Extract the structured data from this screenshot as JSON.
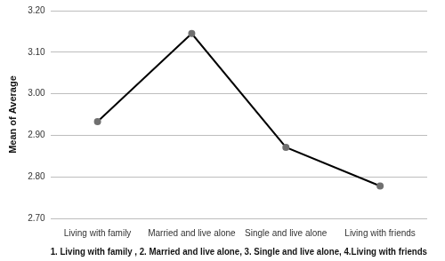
{
  "chart_data": {
    "type": "line",
    "categories": [
      "Living with family",
      "Married and live alone",
      "Single and live alone",
      "Living with friends"
    ],
    "values": [
      2.933,
      3.145,
      2.871,
      2.778
    ],
    "color": "#000000",
    "marker": "circle",
    "ylim": [
      2.7,
      3.2
    ],
    "yticks": [
      {
        "value": 2.7,
        "label": "2.70"
      },
      {
        "value": 2.8,
        "label": "2.80"
      },
      {
        "value": 2.9,
        "label": "2.90"
      },
      {
        "value": 3.0,
        "label": "3.00"
      },
      {
        "value": 3.1,
        "label": "3.10"
      },
      {
        "value": 3.2,
        "label": "3.20"
      }
    ],
    "y_label": "Mean of Average",
    "x_label": "1. Living with family , 2. Married and live alone, 3. Single and live alone, 4.Living with friends",
    "grid": true
  }
}
